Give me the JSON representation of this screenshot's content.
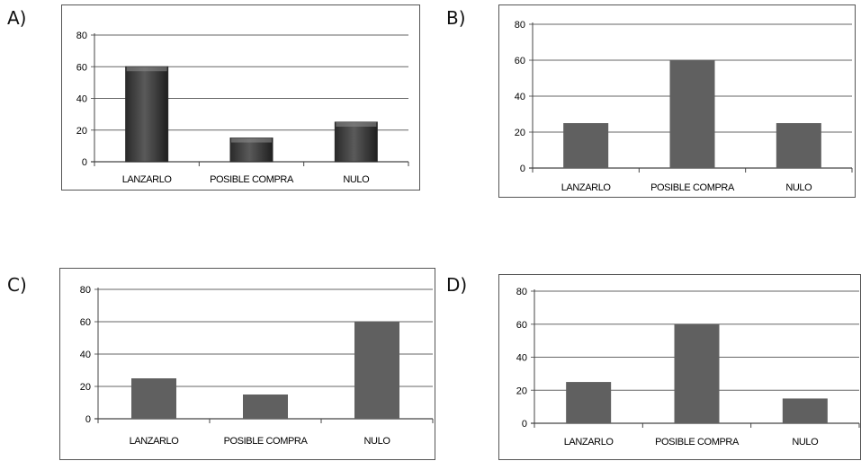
{
  "options": [
    {
      "label": "A)"
    },
    {
      "label": "B)"
    },
    {
      "label": "C)"
    },
    {
      "label": "D)"
    }
  ],
  "chart_data": [
    {
      "type": "bar",
      "categories": [
        "LANZARLO",
        "POSIBLE COMPRA",
        "NULO"
      ],
      "values": [
        60,
        15,
        25
      ],
      "ylim": [
        0,
        80
      ],
      "yticks": [
        "0",
        "20",
        "40",
        "60",
        "80"
      ],
      "grid": true,
      "bar_style": "3d-shaded",
      "bar_color": "#3a3a3a"
    },
    {
      "type": "bar",
      "categories": [
        "LANZARLO",
        "POSIBLE COMPRA",
        "NULO"
      ],
      "values": [
        25,
        60,
        25
      ],
      "ylim": [
        0,
        80
      ],
      "yticks": [
        "0",
        "20",
        "40",
        "60",
        "80"
      ],
      "grid": true,
      "bar_style": "flat",
      "bar_color": "#606060"
    },
    {
      "type": "bar",
      "categories": [
        "LANZARLO",
        "POSIBLE COMPRA",
        "NULO"
      ],
      "values": [
        25,
        15,
        60
      ],
      "ylim": [
        0,
        80
      ],
      "yticks": [
        "0",
        "20",
        "40",
        "60",
        "80"
      ],
      "grid": true,
      "bar_style": "flat",
      "bar_color": "#606060"
    },
    {
      "type": "bar",
      "categories": [
        "LANZARLO",
        "POSIBLE COMPRA",
        "NULO"
      ],
      "values": [
        25,
        60,
        15
      ],
      "ylim": [
        0,
        80
      ],
      "yticks": [
        "0",
        "20",
        "40",
        "60",
        "80"
      ],
      "grid": true,
      "bar_style": "flat",
      "bar_color": "#606060"
    }
  ]
}
